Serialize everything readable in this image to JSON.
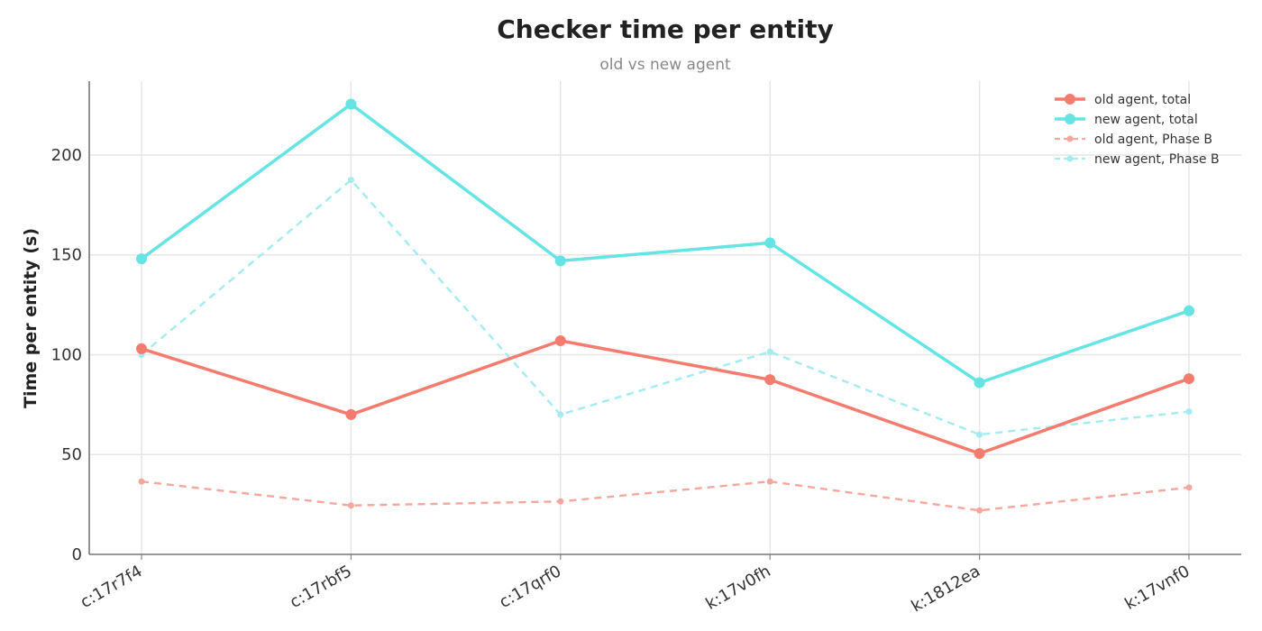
{
  "chart_data": {
    "type": "line",
    "title": "Checker time per entity",
    "subtitle": "old vs new agent",
    "xlabel": "",
    "ylabel": "Time per entity (s)",
    "categories": [
      "c:17r7f4",
      "c:17rbf5",
      "c:17qrf0",
      "k:17v0fh",
      "k:1812ea",
      "k:17vnf0"
    ],
    "ylim": [
      0,
      237
    ],
    "yticks": [
      0,
      50,
      100,
      150,
      200
    ],
    "grid": true,
    "legend_position": "top-right",
    "series": [
      {
        "name": "old agent, total",
        "values": [
          103,
          70,
          107,
          87.5,
          50.5,
          88
        ],
        "color": "#f47c6e",
        "style": "solid"
      },
      {
        "name": "new agent, total",
        "values": [
          148,
          225.5,
          147,
          156,
          86,
          122
        ],
        "color": "#66e3e3",
        "style": "solid"
      },
      {
        "name": "old agent, Phase B",
        "values": [
          36.5,
          24.5,
          26.5,
          36.5,
          22,
          33.5
        ],
        "color": "#f4a79f",
        "style": "dashed"
      },
      {
        "name": "new agent, Phase B",
        "values": [
          100,
          187.5,
          70,
          101.5,
          60,
          71.5
        ],
        "color": "#a3ebee",
        "style": "dashed"
      }
    ]
  }
}
